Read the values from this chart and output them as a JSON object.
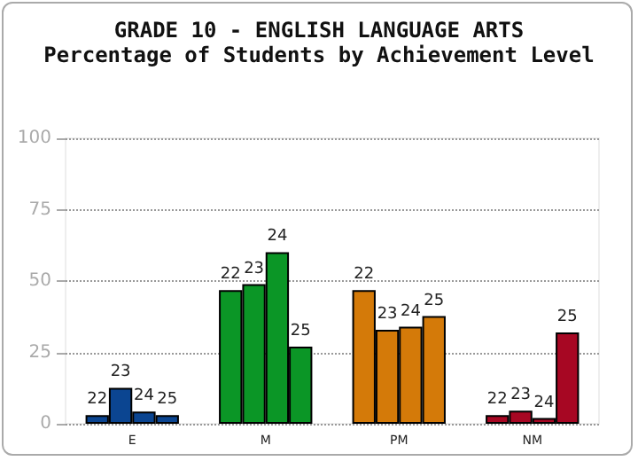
{
  "chart_data": {
    "type": "bar",
    "title": "GRADE 10 - ENGLISH LANGUAGE ARTS",
    "subtitle": "Percentage of Students by Achievement Level",
    "categories": [
      "E",
      "M",
      "PM",
      "NM"
    ],
    "series": [
      {
        "name": "22",
        "colors": [
          "#0b4591",
          "#0b9626",
          "#d47a09",
          "#a70723"
        ],
        "values": [
          3,
          46.8,
          46.8,
          3
        ]
      },
      {
        "name": "23",
        "colors": [
          "#0b4591",
          "#0b9626",
          "#d47a09",
          "#a70723"
        ],
        "values": [
          12.6,
          48.9,
          32.9,
          4.6
        ]
      },
      {
        "name": "24",
        "colors": [
          "#0b4591",
          "#0b9626",
          "#d47a09",
          "#a70723"
        ],
        "values": [
          4.3,
          60.1,
          34,
          2
        ]
      },
      {
        "name": "25",
        "colors": [
          "#0b4591",
          "#0b9626",
          "#d47a09",
          "#a70723"
        ],
        "values": [
          3,
          27,
          37.7,
          32
        ]
      }
    ],
    "ylim": [
      0,
      100
    ],
    "yticks": [
      0,
      25,
      50,
      75,
      100
    ],
    "grid": "y",
    "legend": false
  }
}
